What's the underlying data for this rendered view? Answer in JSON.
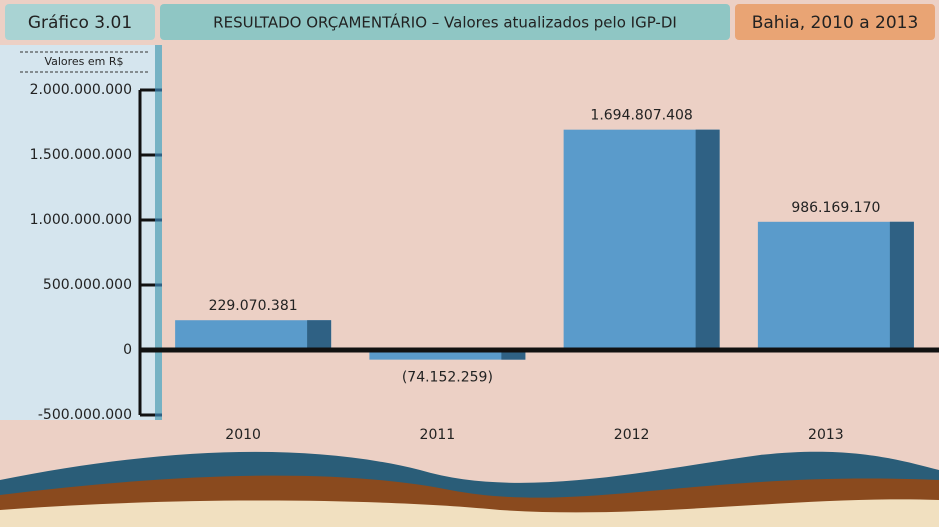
{
  "chart_data": {
    "type": "bar",
    "chart_number": "Gráfico 3.01",
    "title": "RESULTADO ORÇAMENTÁRIO – Valores atualizados pelo IGP-DI",
    "region_period": "Bahia, 2010 a 2013",
    "unit_label": "Valores em R$",
    "categories": [
      "2010",
      "2011",
      "2012",
      "2013"
    ],
    "values": [
      229070381,
      -74152259,
      1694807408,
      986169170
    ],
    "value_labels": [
      "229.070.381",
      "(74.152.259)",
      "1.694.807.408",
      "986.169.170"
    ],
    "color": "#5a9bcb",
    "shade_color": "#2f6184",
    "ylim": [
      -500000000,
      2000000000
    ],
    "yticks": [
      {
        "value": -500000000,
        "label": "-500.000.000"
      },
      0,
      {
        "value": 500000000,
        "label": "500.000.000"
      },
      {
        "value": 1000000000,
        "label": "1.000.000.000"
      },
      {
        "value": 1500000000,
        "label": "1.500.000.000"
      },
      {
        "value": 2000000000,
        "label": "2.000.000.000"
      }
    ]
  }
}
